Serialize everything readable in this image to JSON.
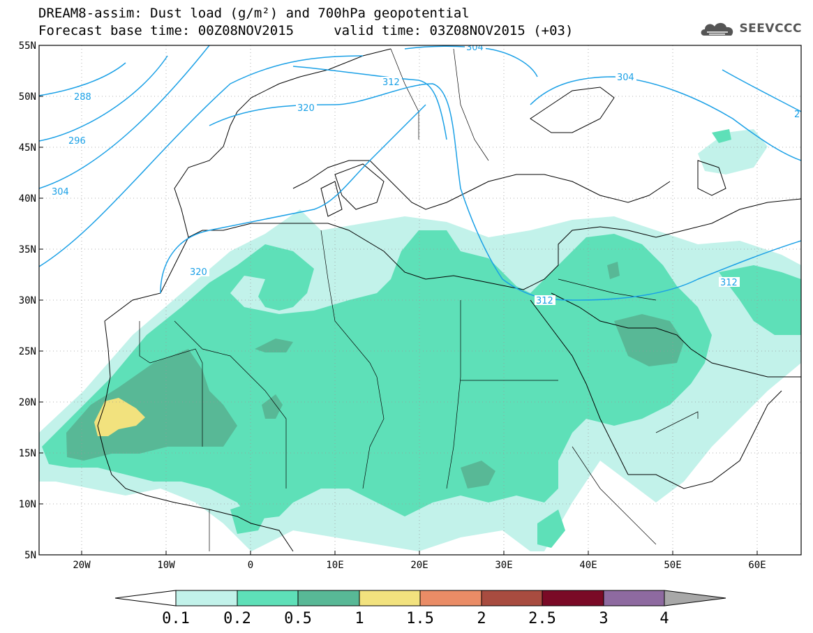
{
  "title": {
    "line1": "DREAM8-assim: Dust load (g/m²) and 700hPa geopotential",
    "line2": "Forecast base time: 00Z08NOV2015     valid time: 03Z08NOV2015 (+03)"
  },
  "logo": {
    "text": "SEEVCCC",
    "icon": "cloud-logo-icon"
  },
  "map": {
    "lon_range": [
      -25,
      65
    ],
    "lat_range": [
      5,
      55
    ],
    "lat_labels": [
      "55N",
      "50N",
      "45N",
      "40N",
      "35N",
      "30N",
      "25N",
      "20N",
      "15N",
      "10N",
      "5N"
    ],
    "lon_labels": [
      "20W",
      "10W",
      "0",
      "10E",
      "20E",
      "30E",
      "40E",
      "50E",
      "60E"
    ],
    "contour_color": "#1aa0e6",
    "contour_labels": [
      "288",
      "296",
      "304",
      "320",
      "312",
      "304",
      "304",
      "320",
      "312",
      "312",
      "2"
    ]
  },
  "legend": {
    "labels": [
      "0.1",
      "0.2",
      "0.5",
      "1",
      "1.5",
      "2",
      "2.5",
      "3",
      "4"
    ],
    "colors": [
      "#c2f2ea",
      "#5ee0b8",
      "#58b896",
      "#f2e27e",
      "#ea8c66",
      "#a84c40",
      "#7a0a26",
      "#8e6aa0"
    ],
    "end_low_color": "#ffffff",
    "end_high_color": "#a8a8a8"
  }
}
